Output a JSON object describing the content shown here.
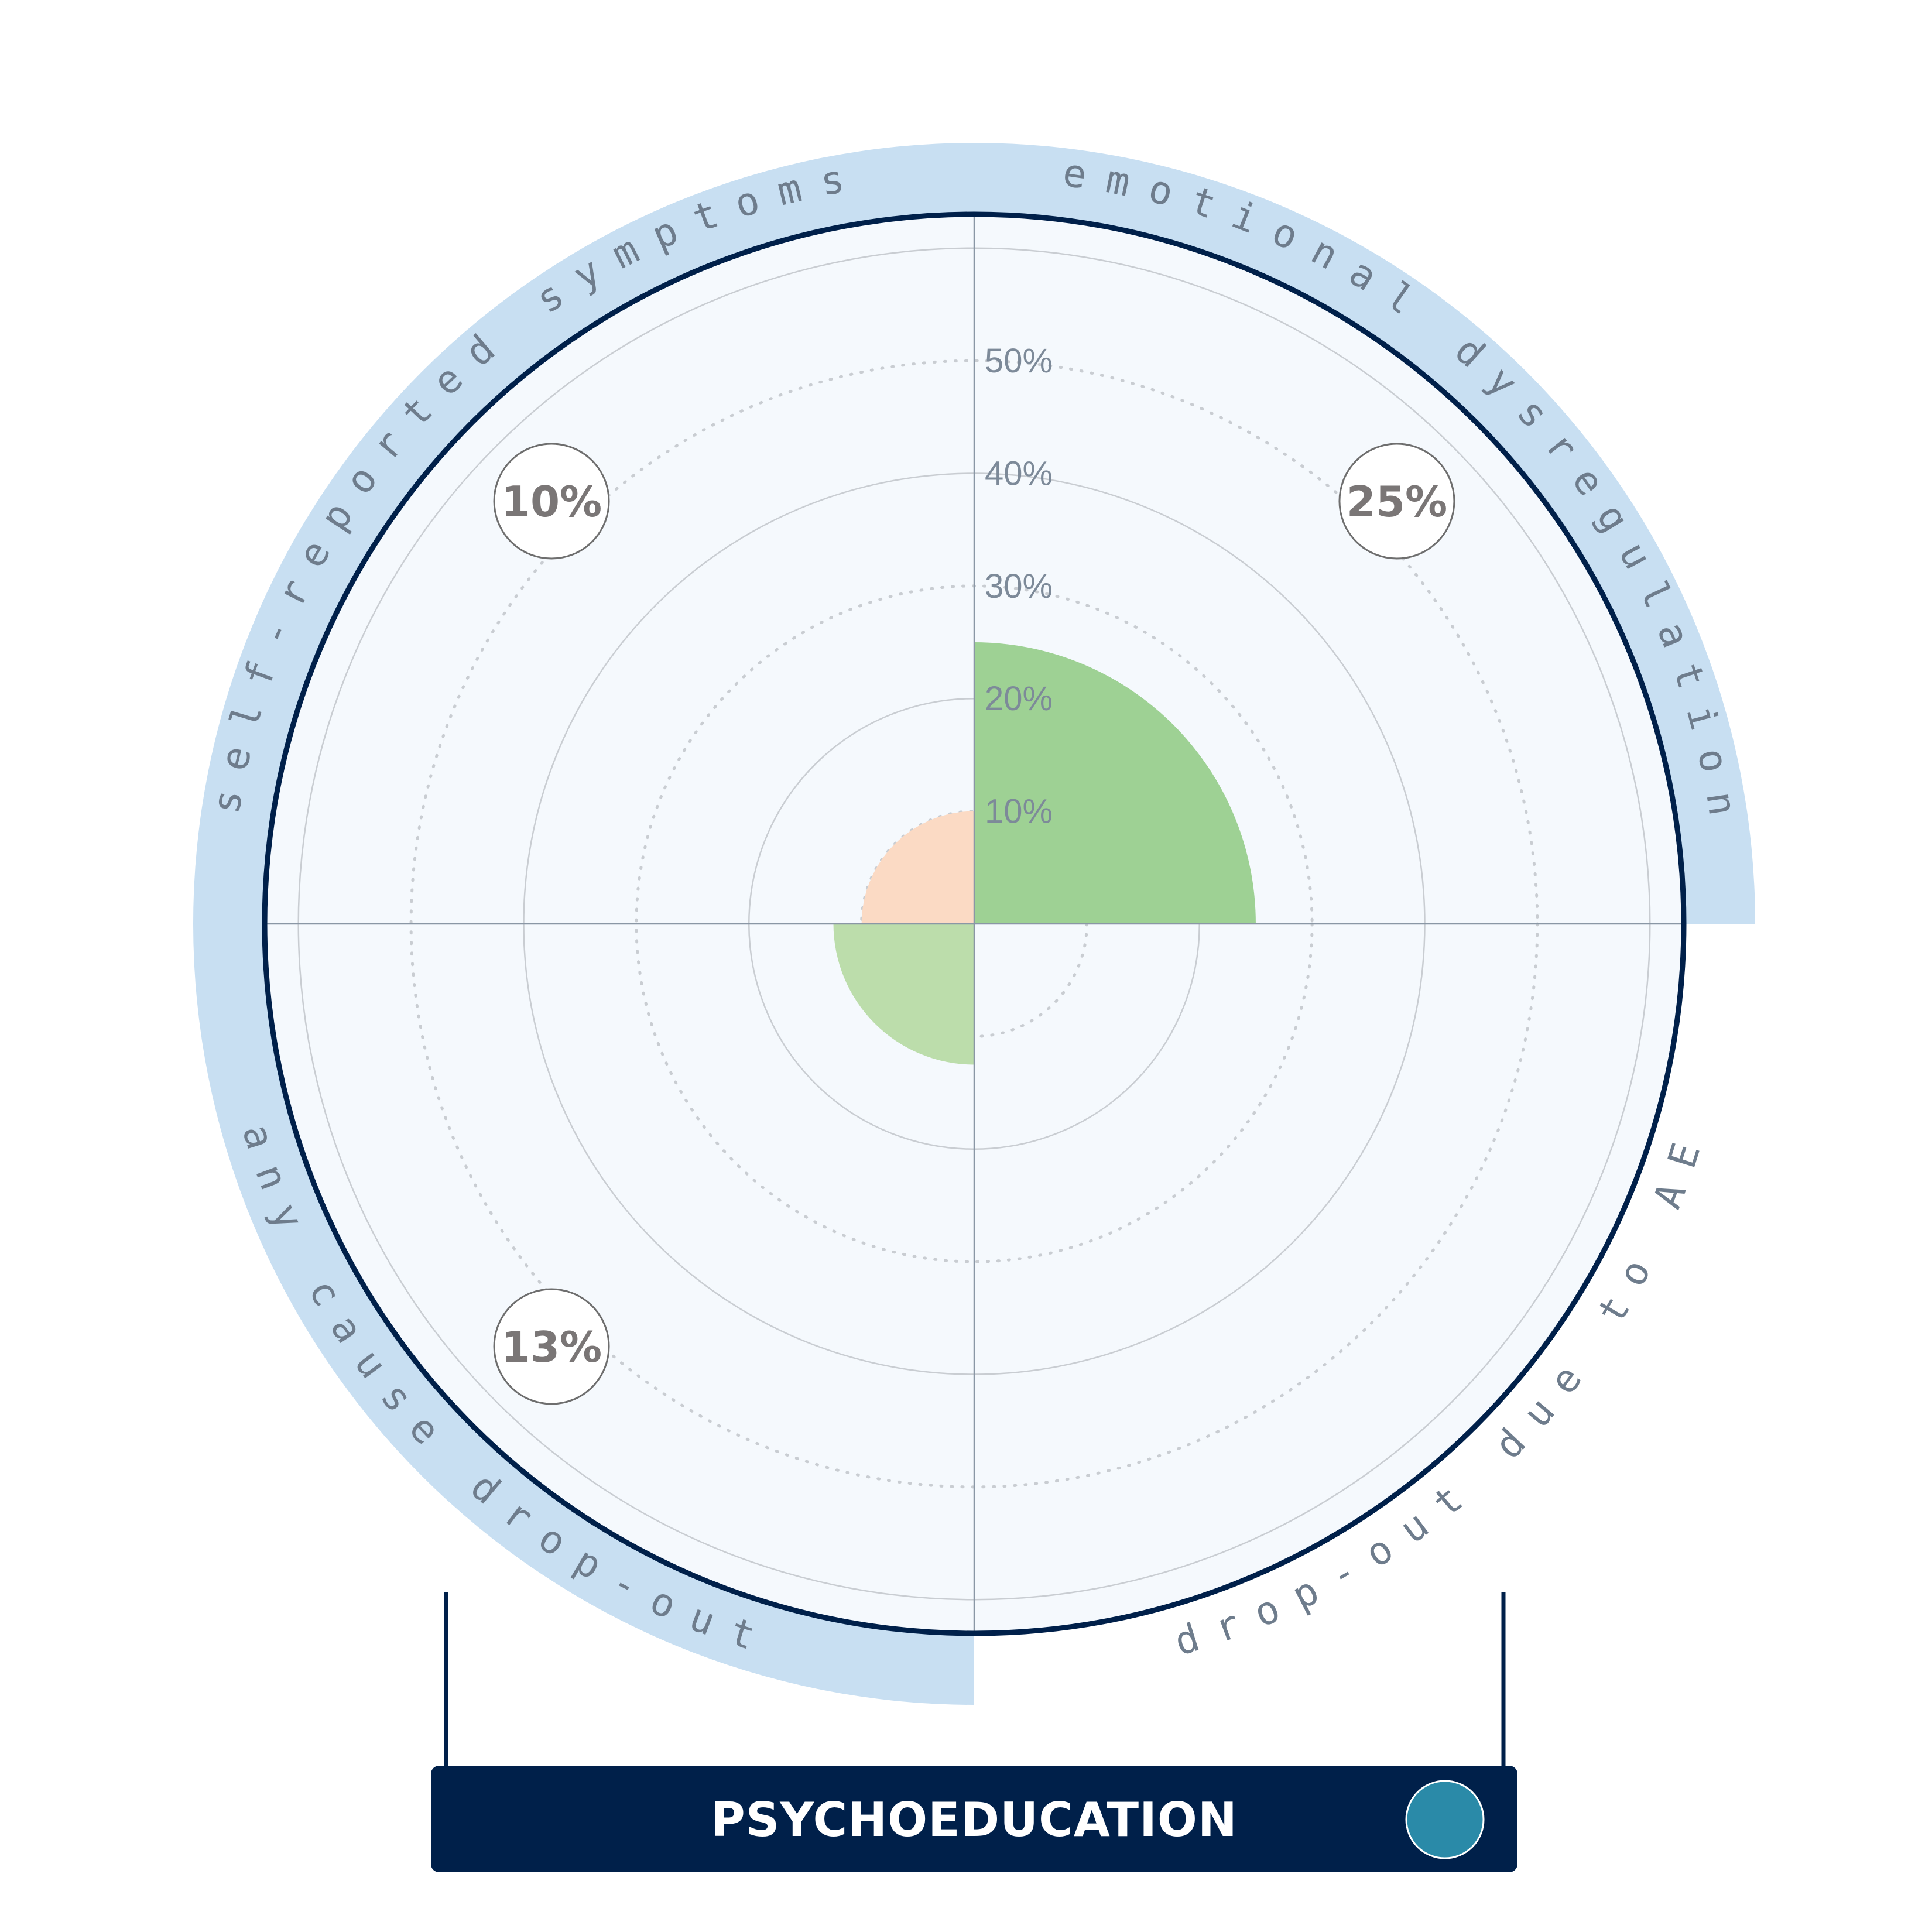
{
  "chart_data": {
    "type": "polar-area",
    "title": "",
    "r_ticks": [
      10,
      20,
      30,
      40,
      50
    ],
    "r_tick_labels": [
      "10%",
      "20%",
      "30%",
      "40%",
      "50%"
    ],
    "r_max": 63,
    "grid": true,
    "quadrants": [
      {
        "label": "emotional dysregulation",
        "position": "top-right",
        "value": 25,
        "badge": "25%",
        "has_band": true,
        "color": "#9ed194"
      },
      {
        "label": "self-reported symptoms",
        "position": "top-left",
        "value": 10,
        "badge": "10%",
        "has_band": true,
        "color": "#fbdac4"
      },
      {
        "label": "any cause drop-out",
        "position": "bottom-left",
        "value": 12.5,
        "badge": "13%",
        "has_band": true,
        "color": "#bcddab"
      },
      {
        "label": "drop-out due to AE",
        "position": "bottom-right",
        "value": 0,
        "badge": "",
        "has_band": false,
        "color": "#ffffff"
      }
    ]
  },
  "footer": {
    "label": "PSYCHOEDUCATION",
    "indicator_color": "#2a8aa8"
  },
  "colors": {
    "background": "#ffffff",
    "plot_fill": "#f5f9fd",
    "band": "#c8dff2",
    "outline": "#00204a",
    "grid": "#c9cdd2",
    "axis": "#8a97a5"
  }
}
